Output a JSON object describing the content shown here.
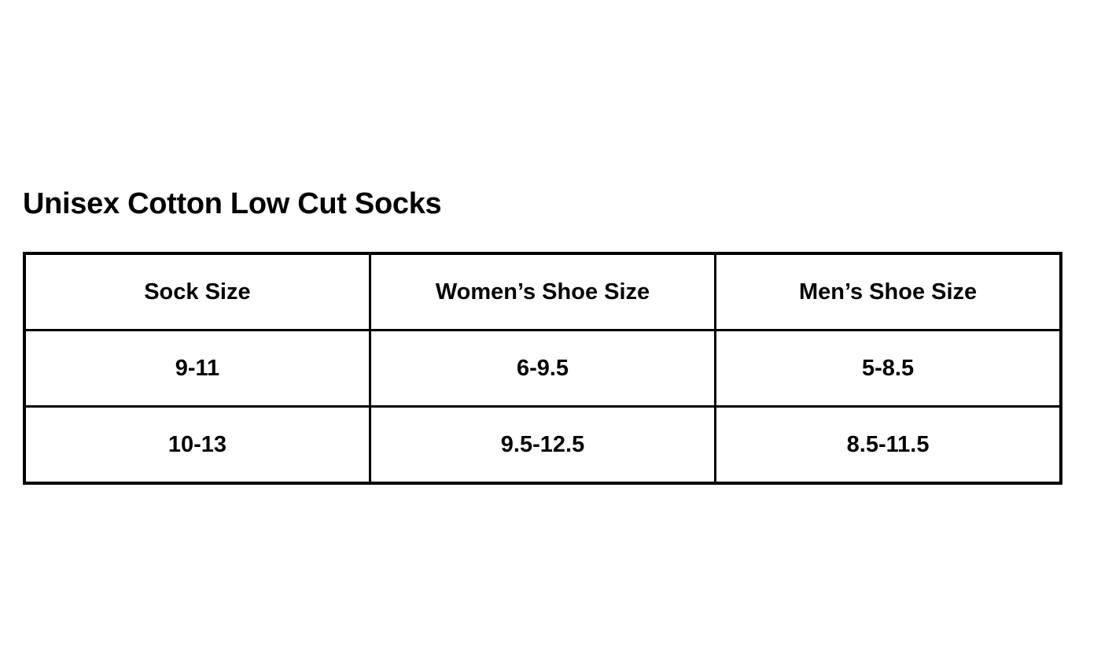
{
  "title": "Unisex Cotton Low Cut Socks",
  "table": {
    "headers": [
      "Sock Size",
      "Women’s Shoe Size",
      "Men’s Shoe Size"
    ],
    "rows": [
      [
        "9-11",
        "6-9.5",
        "5-8.5"
      ],
      [
        "10-13",
        "9.5-12.5",
        "8.5-11.5"
      ]
    ]
  }
}
